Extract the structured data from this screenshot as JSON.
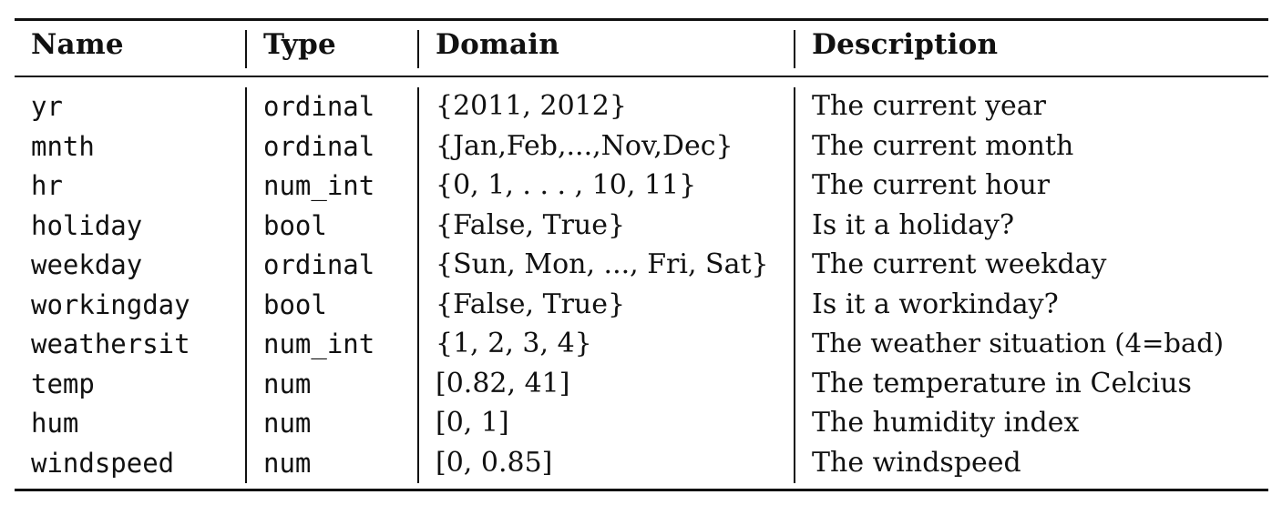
{
  "table": {
    "headers": {
      "name": "Name",
      "type": "Type",
      "domain": "Domain",
      "description": "Description"
    },
    "rows": [
      {
        "name": "yr",
        "type": "ordinal",
        "domain": "{2011, 2012}",
        "description": "The current year"
      },
      {
        "name": "mnth",
        "type": "ordinal",
        "domain": "{Jan,Feb,...,Nov,Dec}",
        "description": "The current month"
      },
      {
        "name": "hr",
        "type": "num_int",
        "domain": "{0, 1, . . . , 10, 11}",
        "description": "The current hour"
      },
      {
        "name": "holiday",
        "type": "bool",
        "domain": "{False, True}",
        "description": "Is it a holiday?"
      },
      {
        "name": "weekday",
        "type": "ordinal",
        "domain": "{Sun, Mon, ..., Fri, Sat}",
        "description": "The current weekday"
      },
      {
        "name": "workingday",
        "type": "bool",
        "domain": "{False, True}",
        "description": "Is it a workinday?"
      },
      {
        "name": "weathersit",
        "type": "num_int",
        "domain": "{1, 2, 3, 4}",
        "description": "The weather situation (4=bad)"
      },
      {
        "name": "temp",
        "type": "num",
        "domain": "[0.82, 41]",
        "description": "The temperature in Celcius"
      },
      {
        "name": "hum",
        "type": "num",
        "domain": "[0, 1]",
        "description": "The humidity index"
      },
      {
        "name": "windspeed",
        "type": "num",
        "domain": "[0, 0.85]",
        "description": "The windspeed"
      }
    ]
  }
}
